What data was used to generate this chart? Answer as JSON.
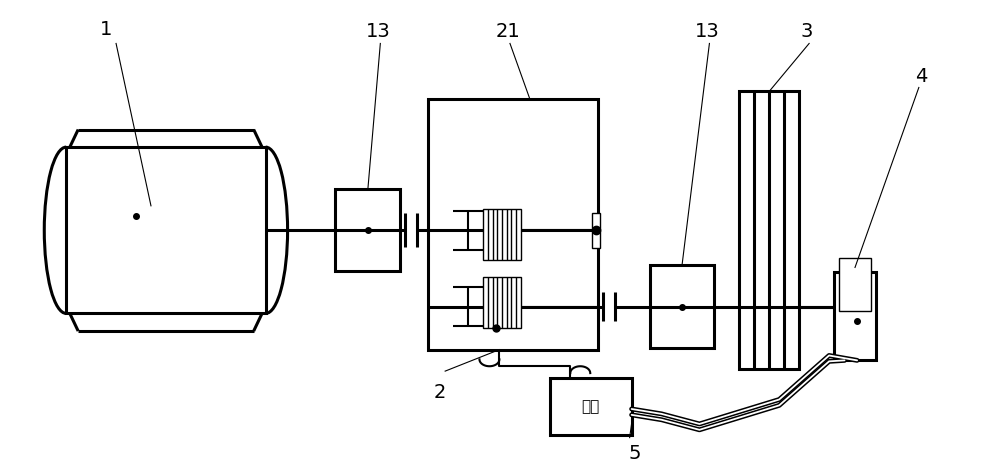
{
  "background_color": "#ffffff",
  "line_color": "#000000",
  "pump_label": "泵站",
  "lw_thick": 2.2,
  "lw_med": 1.5,
  "lw_thin": 1.0,
  "lw_hose": 3.5
}
